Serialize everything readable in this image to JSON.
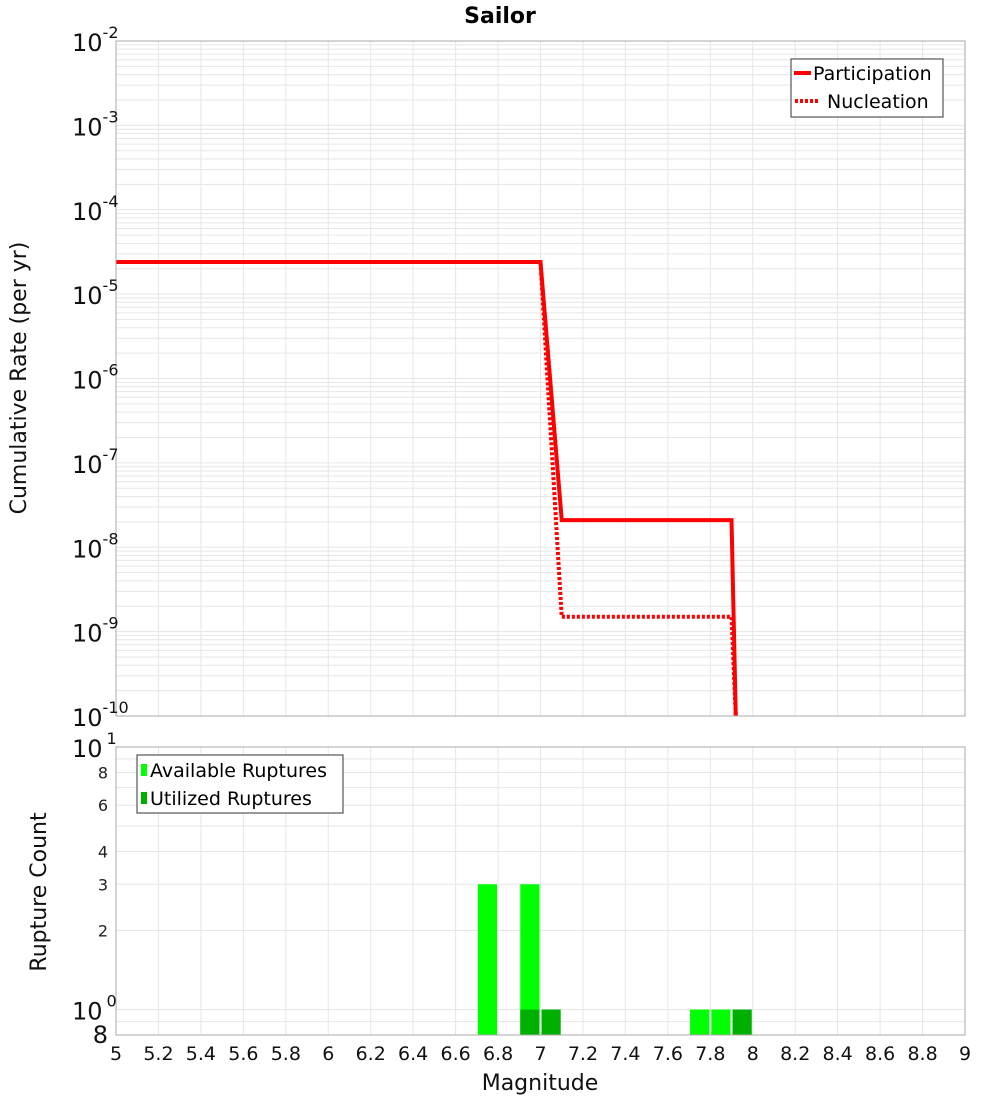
{
  "title": "Sailor",
  "colors": {
    "participation": "#ff0000",
    "nucleation": "#ff0000",
    "available": "#00ff00",
    "utilized": "#00b000",
    "grid": "#e6e6e6",
    "frame": "#aaaaaa"
  },
  "top_plot": {
    "ylabel": "Cumulative Rate (per yr)",
    "y_ticks": [
      {
        "base": "10",
        "exp": "-2"
      },
      {
        "base": "10",
        "exp": "-3"
      },
      {
        "base": "10",
        "exp": "-4"
      },
      {
        "base": "10",
        "exp": "-5"
      },
      {
        "base": "10",
        "exp": "-6"
      },
      {
        "base": "10",
        "exp": "-7"
      },
      {
        "base": "10",
        "exp": "-8"
      },
      {
        "base": "10",
        "exp": "-9"
      },
      {
        "base": "10",
        "exp": "-10"
      }
    ],
    "legend": [
      {
        "label": "Participation",
        "style": "solid"
      },
      {
        "label": "Nucleation",
        "style": "dotted"
      }
    ]
  },
  "bottom_plot": {
    "ylabel": "Rupture Count",
    "y_ticks": [
      {
        "label": "8",
        "value": 8
      },
      {
        "label": "6",
        "value": 6
      },
      {
        "label": "4",
        "value": 4
      },
      {
        "label": "3",
        "value": 3
      },
      {
        "label": "2",
        "value": 2
      }
    ],
    "y_major": [
      {
        "base": "10",
        "exp": "1"
      },
      {
        "base": "10",
        "exp": "0"
      }
    ],
    "y_bottom_label": "8",
    "legend": [
      {
        "label": "Available Ruptures"
      },
      {
        "label": "Utilized Ruptures"
      }
    ]
  },
  "x_axis": {
    "label": "Magnitude",
    "ticks": [
      "5",
      "5.2",
      "5.4",
      "5.6",
      "5.8",
      "6",
      "6.2",
      "6.4",
      "6.6",
      "6.8",
      "7",
      "7.2",
      "7.4",
      "7.6",
      "7.8",
      "8",
      "8.2",
      "8.4",
      "8.6",
      "8.8",
      "9"
    ]
  },
  "chart_data": [
    {
      "type": "line",
      "title": "Sailor",
      "xlabel": "Magnitude",
      "ylabel": "Cumulative Rate (per yr)",
      "xlim": [
        5,
        9
      ],
      "ylim": [
        1e-10,
        0.01
      ],
      "yscale": "log",
      "grid": true,
      "legend_position": "upper right",
      "series": [
        {
          "name": "Participation",
          "style": "solid",
          "color": "#ff0000",
          "x": [
            5.0,
            7.0,
            7.1,
            7.9,
            7.92
          ],
          "y": [
            2.4e-05,
            2.4e-05,
            2.1e-08,
            2.1e-08,
            1e-10
          ]
        },
        {
          "name": "Nucleation",
          "style": "dotted",
          "color": "#ff0000",
          "x": [
            5.0,
            7.0,
            7.1,
            7.9,
            7.92
          ],
          "y": [
            2.4e-05,
            2.4e-05,
            1.5e-09,
            1.5e-09,
            1e-10
          ]
        }
      ]
    },
    {
      "type": "bar",
      "xlabel": "Magnitude",
      "ylabel": "Rupture Count",
      "xlim": [
        5,
        9
      ],
      "ylim": [
        0.8,
        10
      ],
      "yscale": "log",
      "grid": true,
      "legend_position": "upper left",
      "bin_width": 0.1,
      "series": [
        {
          "name": "Available Ruptures",
          "color": "#00ff00",
          "x": [
            6.75,
            6.95,
            7.75,
            7.85
          ],
          "values": [
            3,
            3,
            1,
            1
          ]
        },
        {
          "name": "Utilized Ruptures",
          "color": "#00b000",
          "x": [
            6.95,
            7.05,
            7.95
          ],
          "values": [
            1,
            1,
            1
          ]
        }
      ]
    }
  ]
}
